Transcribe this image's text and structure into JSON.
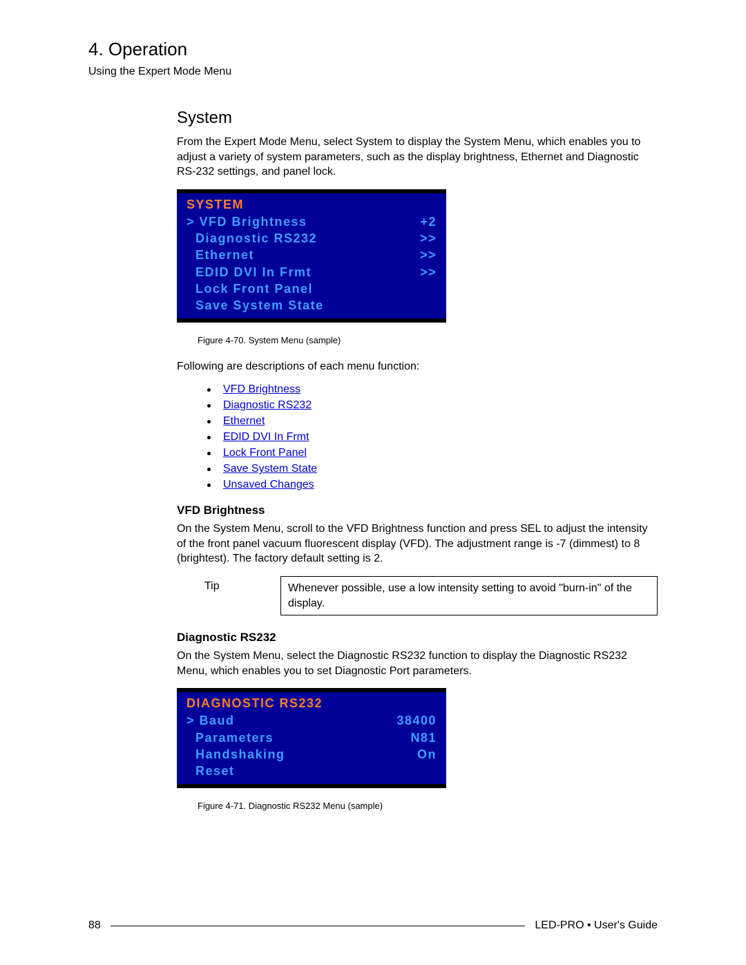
{
  "header": {
    "chapter": "4.  Operation",
    "section": "Using the Expert Mode Menu"
  },
  "system": {
    "heading": "System",
    "intro": "From the Expert Mode Menu, select System to display the System Menu, which enables you to adjust a variety of system parameters, such as the display brightness, Ethernet and Diagnostic RS-232 settings, and panel lock.",
    "menu": {
      "title": "SYSTEM",
      "rows": [
        {
          "left": "> VFD Brightness",
          "right": "+2"
        },
        {
          "left": "  Diagnostic RS232",
          "right": ">>"
        },
        {
          "left": "  Ethernet",
          "right": ">>"
        },
        {
          "left": "  EDID DVI In Frmt",
          "right": ">>"
        },
        {
          "left": "  Lock Front Panel",
          "right": ""
        },
        {
          "left": "  Save System State",
          "right": ""
        }
      ],
      "caption": "Figure 4-70.  System Menu  (sample)"
    },
    "follow_line": "Following are descriptions of each menu function:",
    "links": [
      "VFD Brightness",
      "Diagnostic RS232",
      "Ethernet",
      "EDID DVI In Frmt",
      "Lock Front Panel",
      "Save System State",
      "Unsaved Changes"
    ]
  },
  "vfd": {
    "heading": "VFD Brightness",
    "para": "On the System Menu, scroll to the VFD Brightness function and press SEL to adjust the intensity of the front panel vacuum fluorescent display (VFD).  The adjustment range is -7 (dimmest) to 8 (brightest). The factory default setting is 2.",
    "tip_label": "Tip",
    "tip_text": "Whenever possible, use a low intensity setting to avoid \"burn-in\" of the display."
  },
  "diag": {
    "heading": "Diagnostic RS232",
    "para": "On the System Menu, select the Diagnostic RS232 function to display the Diagnostic RS232 Menu, which enables you to set Diagnostic Port parameters.",
    "menu": {
      "title": "DIAGNOSTIC RS232",
      "rows": [
        {
          "left": "> Baud",
          "right": "38400"
        },
        {
          "left": "  Parameters",
          "right": "N81"
        },
        {
          "left": "  Handshaking",
          "right": "On"
        },
        {
          "left": "  Reset",
          "right": ""
        }
      ],
      "caption": "Figure 4-71.  Diagnostic RS232 Menu  (sample)"
    }
  },
  "footer": {
    "page": "88",
    "guide": "LED-PRO  •  User's Guide"
  },
  "style": {
    "menu_bg_outer": "#000000",
    "menu_bg_inner": "#000099",
    "menu_title_color": "#ff7f27",
    "menu_text_color": "#3f9fff",
    "link_color": "#0000cc"
  }
}
